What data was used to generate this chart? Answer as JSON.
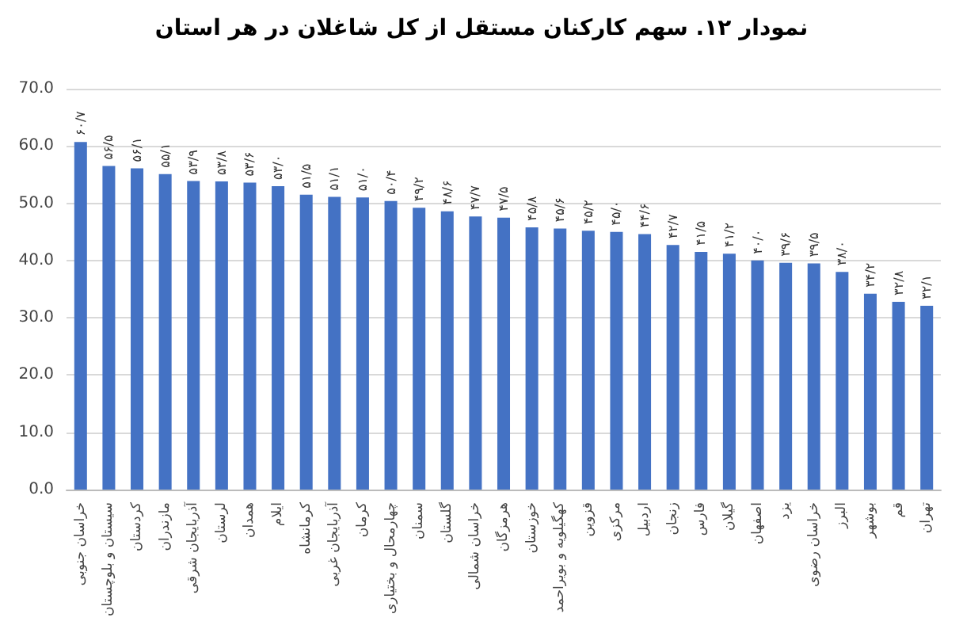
{
  "chart_data": {
    "type": "bar",
    "title": "نمودار ۱۲. سهم کارکنان مستقل از کل شاغلان در هر استان",
    "categories": [
      "خراسان جنوبی",
      "سیستان و بلوچستان",
      "کردستان",
      "مازندران",
      "آذربایجان شرقی",
      "لرستان",
      "همدان",
      "ایلام",
      "کرمانشاه",
      "آذربایجان غربی",
      "کرمان",
      "چهارمحال و بختیاری",
      "سمنان",
      "گلستان",
      "خراسان شمالی",
      "هرمزگان",
      "خوزستان",
      "کهگیلویه و بویراحمد",
      "قزوین",
      "مرکزی",
      "اردبیل",
      "زنجان",
      "فارس",
      "گیلان",
      "اصفهان",
      "یزد",
      "خراسان رضوی",
      "البرز",
      "بوشهر",
      "قم",
      "تهران"
    ],
    "values": [
      60.7,
      56.5,
      56.1,
      55.1,
      53.9,
      53.8,
      53.6,
      53.0,
      51.5,
      51.1,
      51.0,
      50.4,
      49.2,
      48.6,
      47.7,
      47.5,
      45.8,
      45.6,
      45.2,
      45.0,
      44.6,
      42.7,
      41.5,
      41.2,
      40.0,
      39.6,
      39.5,
      38.0,
      34.2,
      32.8,
      32.1
    ],
    "value_labels": [
      "۶۰/۷",
      "۵۶/۵",
      "۵۶/۱",
      "۵۵/۱",
      "۵۳/۹",
      "۵۳/۸",
      "۵۳/۶",
      "۵۳/۰",
      "۵۱/۵",
      "۵۱/۱",
      "۵۱/۰",
      "۵۰/۴",
      "۴۹/۲",
      "۴۸/۶",
      "۴۷/۷",
      "۴۷/۵",
      "۴۵/۸",
      "۴۵/۶",
      "۴۵/۲",
      "۴۵/۰",
      "۴۴/۶",
      "۴۲/۷",
      "۴۱/۵",
      "۴۱/۲",
      "۴۰/۰",
      "۳۹/۶",
      "۳۹/۵",
      "۳۸/۰",
      "۳۴/۲",
      "۳۲/۸",
      "۳۲/۱"
    ],
    "color": "#4472c4",
    "ylim": [
      0,
      70
    ],
    "yticks": [
      {
        "value": 0,
        "label": "0.0"
      },
      {
        "value": 10,
        "label": "10.0"
      },
      {
        "value": 20,
        "label": "20.0"
      },
      {
        "value": 30,
        "label": "30.0"
      },
      {
        "value": 40,
        "label": "40.0"
      },
      {
        "value": 50,
        "label": "50.0"
      },
      {
        "value": 60,
        "label": "60.0"
      },
      {
        "value": 70,
        "label": "70.0"
      }
    ],
    "grid": "y"
  }
}
